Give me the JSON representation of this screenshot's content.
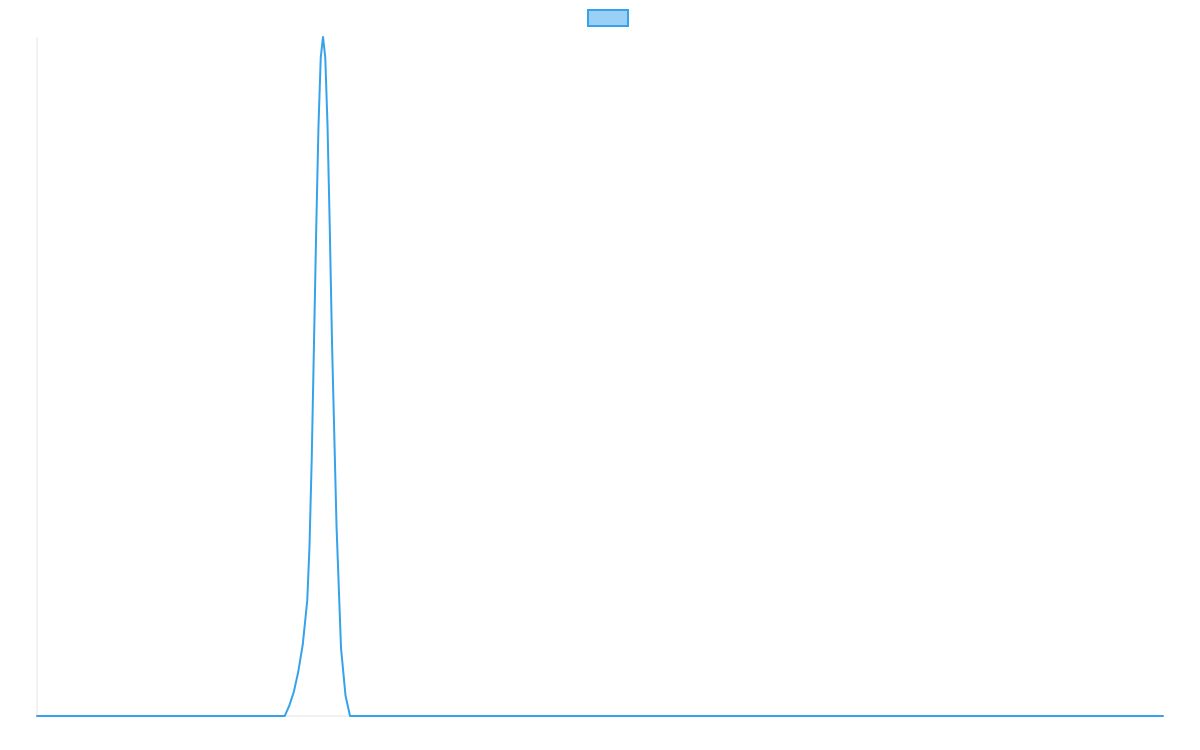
{
  "chart_data": {
    "type": "line",
    "title": "",
    "xlabel": "",
    "ylabel": "",
    "legend": {
      "placement": "top-center",
      "entries": [
        {
          "label": "",
          "color": "#36a2eb",
          "fill": "#9ad0f5"
        }
      ]
    },
    "grid": false,
    "series": [
      {
        "color": "#36a2eb",
        "x": [
          0,
          100,
          200,
          220,
          224,
          228,
          232,
          236,
          240,
          242,
          244,
          246,
          248,
          250,
          252,
          254,
          256,
          258,
          260,
          262,
          266,
          270,
          274,
          278,
          282,
          286,
          290,
          300,
          400,
          500,
          600,
          700,
          800,
          900,
          1000
        ],
        "y": [
          0,
          0,
          0,
          0,
          1.5,
          3.5,
          6.5,
          10.5,
          17,
          25,
          38,
          55,
          72,
          87,
          97,
          100,
          97,
          87,
          72,
          55,
          28,
          10,
          3,
          0,
          0,
          0,
          0,
          0,
          0,
          0,
          0,
          0,
          0,
          0,
          0
        ]
      }
    ],
    "xlim": [
      0,
      1000
    ],
    "ylim": [
      0,
      100
    ]
  }
}
